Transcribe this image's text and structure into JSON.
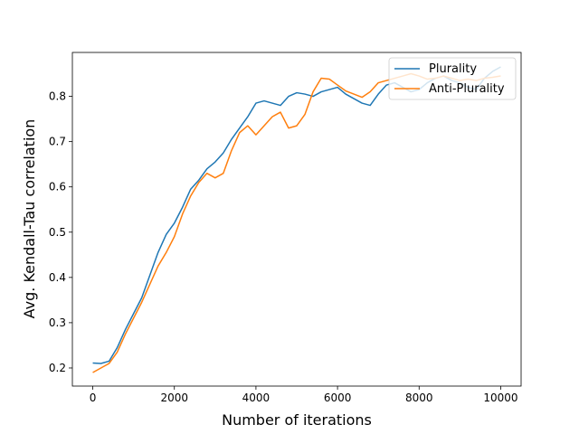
{
  "chart_data": {
    "type": "line",
    "xlabel": "Number of iterations",
    "ylabel": "Avg. Kendall-Tau correlation",
    "xlim": [
      -500,
      10500
    ],
    "ylim": [
      0.16,
      0.897
    ],
    "xticks": [
      0,
      2000,
      4000,
      6000,
      8000,
      10000
    ],
    "xtick_labels": [
      "0",
      "2000",
      "4000",
      "6000",
      "8000",
      "10000"
    ],
    "yticks": [
      0.2,
      0.3,
      0.4,
      0.5,
      0.6,
      0.7,
      0.8
    ],
    "ytick_labels": [
      "0.2",
      "0.3",
      "0.4",
      "0.5",
      "0.6",
      "0.7",
      "0.8"
    ],
    "grid": false,
    "legend_position": "upper right",
    "series": [
      {
        "name": "Plurality",
        "color": "#1f77b4",
        "x": [
          0,
          200,
          400,
          600,
          800,
          1000,
          1200,
          1400,
          1600,
          1800,
          2000,
          2200,
          2400,
          2600,
          2800,
          3000,
          3200,
          3400,
          3600,
          3800,
          4000,
          4200,
          4400,
          4600,
          4800,
          5000,
          5200,
          5400,
          5600,
          5800,
          6000,
          6200,
          6400,
          6600,
          6800,
          7000,
          7200,
          7400,
          7600,
          7800,
          8000,
          8200,
          8400,
          8600,
          8800,
          9000,
          9200,
          9400,
          9600,
          9800,
          10000
        ],
        "y": [
          0.211,
          0.21,
          0.215,
          0.245,
          0.285,
          0.32,
          0.355,
          0.405,
          0.455,
          0.495,
          0.52,
          0.555,
          0.595,
          0.615,
          0.64,
          0.655,
          0.675,
          0.705,
          0.73,
          0.755,
          0.785,
          0.79,
          0.785,
          0.78,
          0.8,
          0.808,
          0.805,
          0.8,
          0.81,
          0.815,
          0.82,
          0.805,
          0.795,
          0.785,
          0.78,
          0.805,
          0.825,
          0.83,
          0.82,
          0.81,
          0.815,
          0.83,
          0.84,
          0.845,
          0.835,
          0.83,
          0.82,
          0.815,
          0.84,
          0.855,
          0.865
        ]
      },
      {
        "name": "Anti-Plurality",
        "color": "#ff7f0e",
        "x": [
          0,
          200,
          400,
          600,
          800,
          1000,
          1200,
          1400,
          1600,
          1800,
          2000,
          2200,
          2400,
          2600,
          2800,
          3000,
          3200,
          3400,
          3600,
          3800,
          4000,
          4200,
          4400,
          4600,
          4800,
          5000,
          5200,
          5400,
          5600,
          5800,
          6000,
          6200,
          6400,
          6600,
          6800,
          7000,
          7200,
          7400,
          7600,
          7800,
          8000,
          8200,
          8400,
          8600,
          8800,
          9000,
          9200,
          9400,
          9600,
          9800,
          10000
        ],
        "y": [
          0.19,
          0.2,
          0.21,
          0.235,
          0.275,
          0.31,
          0.345,
          0.385,
          0.425,
          0.455,
          0.49,
          0.54,
          0.58,
          0.61,
          0.63,
          0.62,
          0.63,
          0.68,
          0.72,
          0.735,
          0.715,
          0.735,
          0.755,
          0.765,
          0.73,
          0.735,
          0.76,
          0.81,
          0.84,
          0.838,
          0.825,
          0.812,
          0.805,
          0.798,
          0.81,
          0.83,
          0.835,
          0.84,
          0.845,
          0.85,
          0.845,
          0.838,
          0.84,
          0.845,
          0.84,
          0.835,
          0.838,
          0.835,
          0.84,
          0.842,
          0.845
        ]
      }
    ]
  }
}
